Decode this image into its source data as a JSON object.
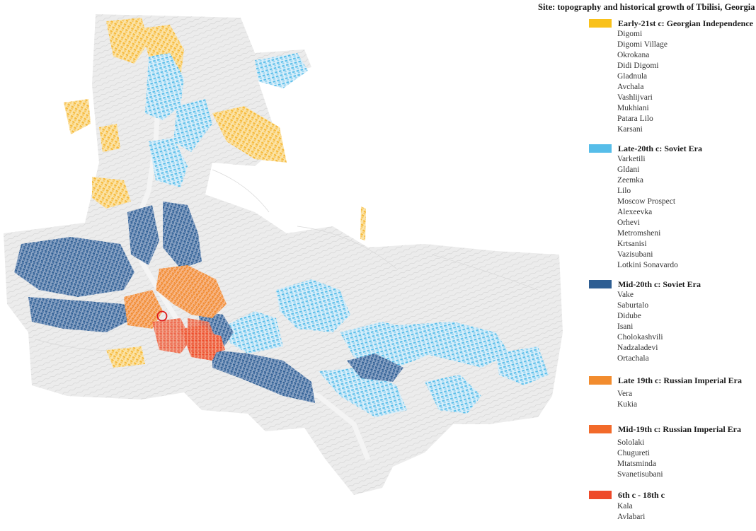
{
  "title": "Site: topography and historical growth of Tbilisi, Georgia",
  "legend": [
    {
      "label": "Early-21st c: Georgian Independence",
      "color": "#f9c11a",
      "items": [
        "Digomi",
        "Digomi Village",
        "Okrokana",
        "Didi Digomi",
        "Gladnula",
        "Avchala",
        "Vashlijvari",
        "Mukhiani",
        "Patara Lilo",
        "Karsani"
      ]
    },
    {
      "label": "Late-20th c: Soviet Era",
      "color": "#56bde9",
      "items": [
        "Varketili",
        "Gldani",
        "Zeemka",
        "Lilo",
        "Moscow Prospect",
        "Alexeevka",
        "Orhevi",
        "Metromsheni",
        "Krtsanisi",
        "Vazisubani",
        "Lotkini Sonavardo"
      ]
    },
    {
      "label": "Mid-20th c: Soviet Era",
      "color": "#2e5e93",
      "items": [
        "Vake",
        "Saburtalo",
        "Didube",
        "Isani",
        "Cholokashvili",
        "Nadzaladevi",
        "Ortachala"
      ]
    },
    {
      "label": "Late 19th c: Russian Imperial Era",
      "color": "#f28c2e",
      "items": [
        "Vera",
        "Kukia"
      ]
    },
    {
      "label": "Mid-19th c: Russian Imperial Era",
      "color": "#f26a2a",
      "items": [
        "Sololaki",
        "Chugureti",
        "Mtatsminda",
        "Svanetisubani"
      ]
    },
    {
      "label": "6th c - 18th c",
      "color": "#ee4a2a",
      "items": [
        "Kala",
        "Avlabari"
      ]
    }
  ],
  "map": {
    "terrain_color": "#e6e6e6",
    "contour_color": "#cfcfcf",
    "marker_color": "#e01b1b"
  }
}
